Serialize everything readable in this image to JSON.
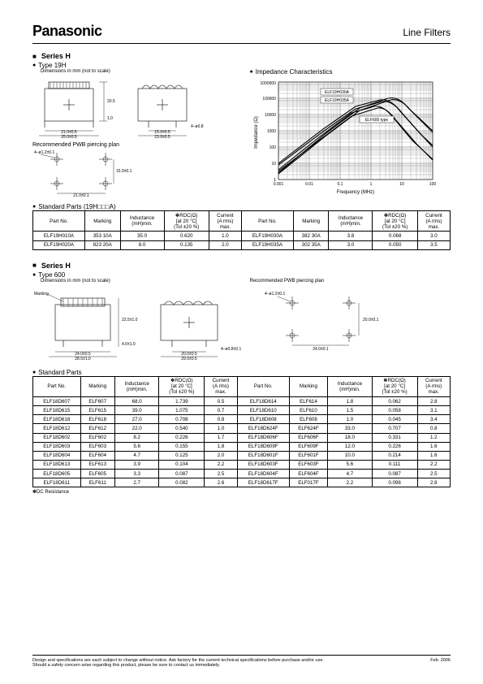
{
  "header": {
    "brand": "Panasonic",
    "doc_title": "Line Filters"
  },
  "section1": {
    "series": "Series H",
    "type": "Type 19H",
    "dim_note": "Dimensions in mm (not to scale)",
    "impedance_title": "Impedance Characteristics",
    "pwb_label": "Recommended PWB piercing plan",
    "dim_labels": {
      "h1": "20.5",
      "h2": "1.0",
      "w1": "21.0±0.5",
      "w2": "25.0±0.5",
      "w3": "15.0±0.5",
      "w4": "23.0±0.5",
      "pin": "4–ø0.8",
      "pwb_hole": "4–ø1.2±0.1",
      "pwb_w": "21.0±0.1",
      "pwb_h": "15.0±0.1"
    },
    "chart": {
      "xlabel": "Frequency (MHz)",
      "ylabel": "Impedance (Ω)",
      "xticks": [
        "0.001",
        "0.01",
        "0.1",
        "1",
        "10",
        "100"
      ],
      "yticks": [
        "1",
        "10",
        "100",
        "1000",
        "10000",
        "100000",
        "1000000"
      ],
      "annot1": "ELF19H030A",
      "annot2": "ELF19H035A",
      "annot3": "ELF600 type"
    }
  },
  "table1": {
    "title": "Standard Parts (19H□□□A)",
    "headers": [
      "Part No.",
      "Marking",
      "Inductance\n(mH)min.",
      "✽RDC(Ω)\n[at 20 °C]\n(Tol ±20 %)",
      "Current\n(A rms)\nmax.",
      "Part No.",
      "Marking",
      "Inductance\n(mH)min.",
      "✽RDC(Ω)\n[at 20 °C]\n(Tol ±20 %)",
      "Current\n(A rms)\nmax."
    ],
    "rows": [
      [
        "ELF19H010A",
        "353 10A",
        "35.0",
        "0.620",
        "1.0",
        "ELF19H030A",
        "382 30A",
        "3.8",
        "0.068",
        "3.0"
      ],
      [
        "ELF19H020A",
        "823 20A",
        "8.0",
        "0.135",
        "2.0",
        "ELF19H035A",
        "302 35A",
        "3.0",
        "0.050",
        "3.5"
      ]
    ]
  },
  "section2": {
    "series": "Series H",
    "type": "Type 600",
    "dim_note": "Dimensions in mm (not to scale)",
    "pwb_label": "Recommended PWB piercing plan",
    "marking": "Marking",
    "dim_labels": {
      "h": "22.5±1.0",
      "w1": "24.0±0.5",
      "w2": "28.5±1.0",
      "bot": "4.0±1.0",
      "w3": "20.0±0.5",
      "w4": "29.0±0.5",
      "pin": "4–ø0.8±0.1",
      "pwb_hole": "4–ø1.2±0.1",
      "pwb_w": "24.0±0.1",
      "pwb_h": "20.0±0.1"
    }
  },
  "table2": {
    "title": "Standard Parts",
    "headers": [
      "Part No.",
      "Marking",
      "Inductance\n(mH)min.",
      "✽RDC(Ω)\n[at 20 °C]\n(Tol ±20 %)",
      "Current\n(A rms)\nmax.",
      "Part No.",
      "Marking",
      "Inductance\n(mH)min.",
      "✽RDC(Ω)\n[at 20 °C]\n(Tol ±20 %)",
      "Current\n(A rms)\nmax."
    ],
    "rows": [
      [
        "ELF18D607",
        "ELF607",
        "68.0",
        "1.739",
        "0.5",
        "ELF18D614",
        "ELF614",
        "1.8",
        "0.062",
        "2.8"
      ],
      [
        "ELF18D615",
        "ELF615",
        "39.0",
        "1.075",
        "0.7",
        "ELF18D610",
        "ELF610",
        "1.5",
        "0.058",
        "3.1"
      ],
      [
        "ELF18D618",
        "ELF618",
        "27.0",
        "0.708",
        "0.8",
        "ELF18D608",
        "ELF608",
        "1.0",
        "0.045",
        "3.4"
      ],
      [
        "ELF18D612",
        "ELF612",
        "22.0",
        "0.540",
        "1.0",
        "ELF18D624F",
        "ELF624F",
        "33.0",
        "0.707",
        "0.8"
      ],
      [
        "ELF18D602",
        "ELF602",
        "8.2",
        "0.226",
        "1.7",
        "ELF18D606F",
        "ELF606F",
        "18.0",
        "0.331",
        "1.2"
      ],
      [
        "ELF18D603",
        "ELF603",
        "5.6",
        "0.155",
        "1.8",
        "ELF18D609F",
        "ELF609F",
        "12.0",
        "0.226",
        "1.6"
      ],
      [
        "ELF18D604",
        "ELF604",
        "4.7",
        "0.125",
        "2.0",
        "ELF18D601F",
        "ELF601F",
        "10.0",
        "0.214",
        "1.6"
      ],
      [
        "ELF18D613",
        "ELF613",
        "3.9",
        "0.104",
        "2.2",
        "ELF18D603F",
        "ELF603F",
        "5.6",
        "0.111",
        "2.2"
      ],
      [
        "ELF18D605",
        "ELF605",
        "3.3",
        "0.087",
        "2.5",
        "ELF18D604F",
        "ELF604F",
        "4.7",
        "0.087",
        "2.5"
      ],
      [
        "ELF18D611",
        "ELF611",
        "2.7",
        "0.082",
        "2.6",
        "ELF18D617F",
        "ELF017F",
        "2.2",
        "0.098",
        "2.8"
      ]
    ],
    "footnote": "✽DC Resistance"
  },
  "footer": {
    "disclaimer": "Design and specifications are each subject to change without notice. Ask factory for the current technical specifications before purchase and/or use.\nShould a safety concern arise regarding this product, please be sure to contact us immediately.",
    "date": "Feb. 2006"
  }
}
